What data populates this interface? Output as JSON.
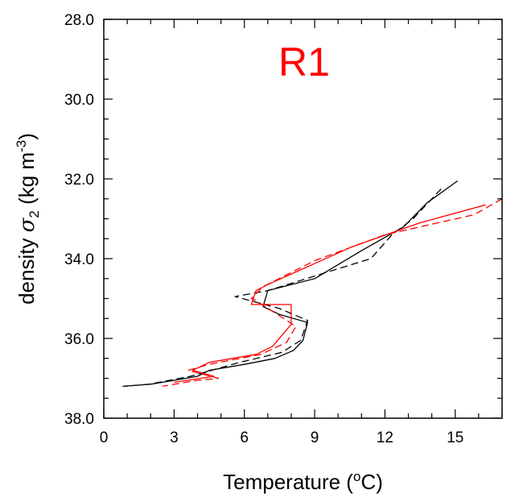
{
  "chart_data": {
    "type": "line",
    "title": "R1",
    "title_color": "#ff0000",
    "xlabel": {
      "prefix": "Temperature (",
      "sup": "o",
      "suffix": "C)"
    },
    "ylabel": {
      "prefix": "density ",
      "symbol": "σ",
      "sub": "2",
      "unit_prefix": " (kg m",
      "sup": "-3",
      "unit_suffix": ")"
    },
    "xlim": [
      0,
      17
    ],
    "ylim": [
      28,
      38
    ],
    "y_inverted": true,
    "x_ticks": [
      0,
      3,
      6,
      9,
      12,
      15
    ],
    "x_tick_labels": [
      "0",
      "3",
      "6",
      "9",
      "12",
      "15"
    ],
    "x_minor_step": 1,
    "y_ticks": [
      28,
      30,
      32,
      34,
      36,
      38
    ],
    "y_tick_labels": [
      "28.0",
      "30.0",
      "32.0",
      "34.0",
      "36.0",
      "38.0"
    ],
    "y_minor_step": 0.5,
    "grid": false,
    "legend": "none",
    "series": [
      {
        "color": "#000000",
        "dash": "solid",
        "x": [
          15.1,
          13.8,
          12.8,
          11.0,
          9.0,
          7.0,
          6.8,
          7.5,
          8.7,
          8.5,
          8.1,
          7.3,
          6.0,
          4.5,
          4.0,
          3.0,
          2.0,
          0.8
        ],
        "y": [
          32.05,
          32.6,
          33.2,
          33.8,
          34.5,
          34.8,
          35.2,
          35.4,
          35.6,
          36.05,
          36.3,
          36.5,
          36.65,
          36.8,
          36.95,
          37.05,
          37.15,
          37.2
        ]
      },
      {
        "color": "#000000",
        "dash": "dashed",
        "x": [
          14.4,
          13.2,
          12.3,
          11.4,
          7.0,
          5.6,
          7.5,
          8.7,
          8.4,
          7.6,
          5.8,
          4.6,
          3.7,
          2.8,
          1.9,
          0.9
        ],
        "y": [
          32.25,
          33.0,
          33.4,
          34.0,
          34.8,
          34.95,
          35.25,
          35.55,
          36.05,
          36.35,
          36.6,
          36.8,
          36.95,
          37.05,
          37.15,
          37.2
        ]
      },
      {
        "color": "#ff0000",
        "dash": "solid",
        "x": [
          16.3,
          13.5,
          10.6,
          7.0,
          6.5,
          6.3,
          8.0,
          8.0,
          7.2,
          6.5,
          4.5,
          3.8,
          4.7,
          3.0
        ],
        "y": [
          32.65,
          33.1,
          33.7,
          34.65,
          34.8,
          35.15,
          35.15,
          35.65,
          36.2,
          36.4,
          36.6,
          36.8,
          36.95,
          37.1
        ]
      },
      {
        "color": "#ff0000",
        "dash": "dashed",
        "x": [
          17.0,
          15.8,
          12.0,
          9.0,
          6.8,
          6.3,
          6.5,
          8.2,
          7.8,
          6.7,
          4.5,
          3.6,
          4.9,
          4.0,
          2.5
        ],
        "y": [
          32.5,
          32.9,
          33.4,
          34.05,
          34.7,
          35.0,
          35.05,
          35.7,
          36.1,
          36.4,
          36.65,
          36.8,
          37.0,
          37.05,
          37.2
        ]
      }
    ]
  }
}
